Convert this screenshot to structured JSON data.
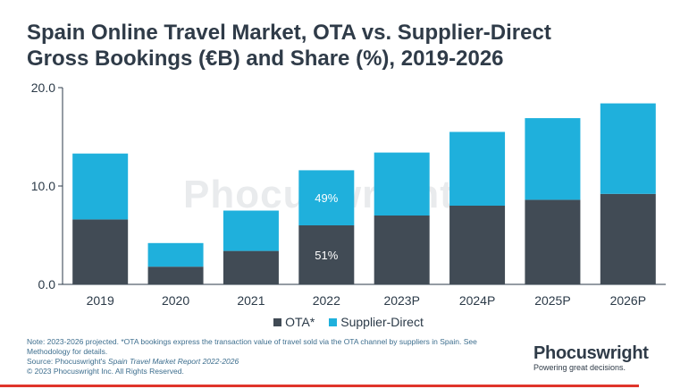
{
  "title_line1": "Spain Online Travel Market, OTA vs. Supplier-Direct",
  "title_line2": "Gross Bookings (€B) and Share (%), 2019-2026",
  "watermark": "Phocuswright",
  "colors": {
    "ota": "#414b55",
    "supplier": "#1fb0dc",
    "accent": "#e0352b",
    "axis": "#2b3a48"
  },
  "chart_data": {
    "type": "bar",
    "stacked": true,
    "categories": [
      "2019",
      "2020",
      "2021",
      "2022",
      "2023P",
      "2024P",
      "2025P",
      "2026P"
    ],
    "series": [
      {
        "name": "OTA*",
        "values": [
          6.6,
          1.8,
          3.4,
          6.0,
          7.0,
          8.0,
          8.6,
          9.2
        ]
      },
      {
        "name": "Supplier-Direct",
        "values": [
          6.7,
          2.4,
          4.1,
          5.6,
          6.4,
          7.5,
          8.3,
          9.2
        ]
      }
    ],
    "ylim": [
      0,
      20
    ],
    "yticks": [
      "0.0",
      "10.0",
      "20.0"
    ],
    "ytick_values": [
      0,
      10,
      20
    ],
    "annotations": [
      {
        "category": "2022",
        "series": "Supplier-Direct",
        "text": "49%"
      },
      {
        "category": "2022",
        "series": "OTA*",
        "text": "51%"
      }
    ],
    "legend": "bottom",
    "grid": false
  },
  "footer": {
    "note_line1": "Note: 2023-2026 projected. *OTA bookings express the transaction value of travel sold via the OTA channel by suppliers in Spain. See",
    "note_line2": "Methodology for details.",
    "source_prefix": "Source: Phocuswright's ",
    "source_title": "Spain Travel Market Report 2022-2026",
    "copyright": "© 2023 Phocuswright Inc. All Rights Reserved."
  },
  "logo": {
    "name": "Phocuswright",
    "tagline": "Powering great decisions."
  }
}
